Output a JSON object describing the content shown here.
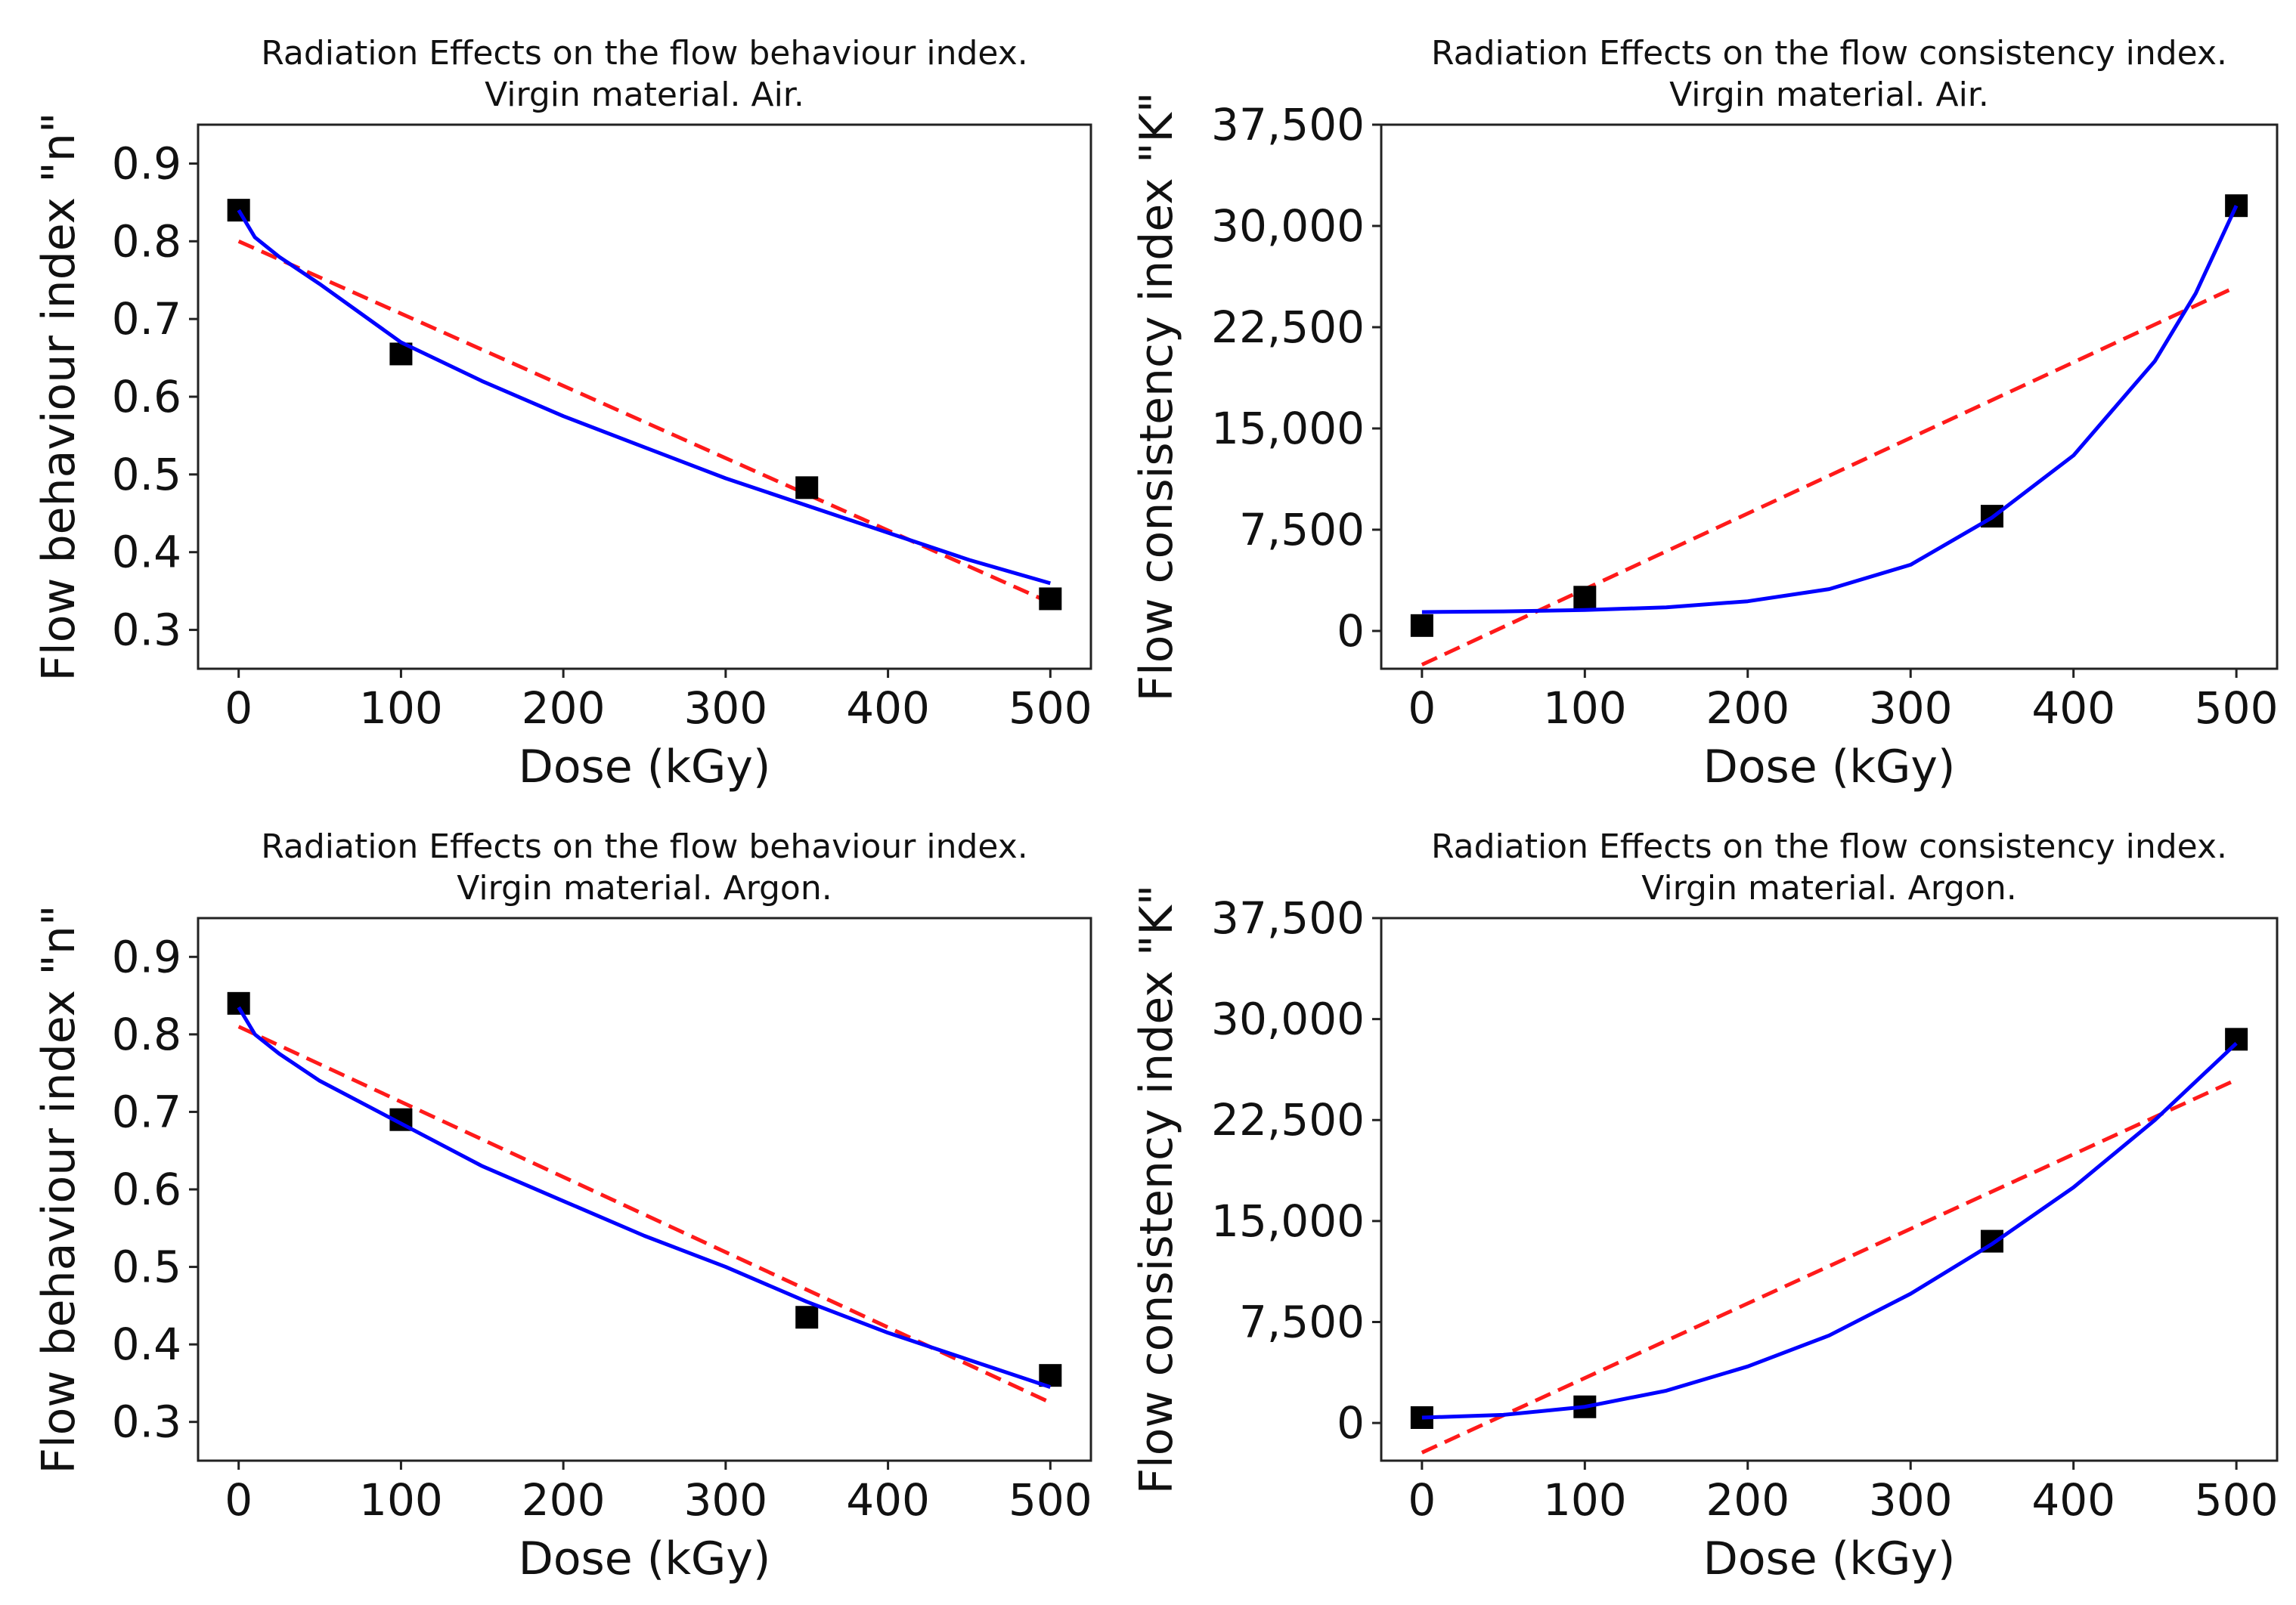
{
  "chart_data": [
    {
      "type": "scatter",
      "title": [
        "Radiation Effects on the flow behaviour index.",
        "Virgin material. Air."
      ],
      "xlabel": "Dose (kGy)",
      "ylabel": "Flow behaviour index \"n\"",
      "xlim": [
        -25,
        525
      ],
      "ylim": [
        0.25,
        0.95
      ],
      "xticks": [
        0,
        100,
        200,
        300,
        400,
        500
      ],
      "xtick_labels": [
        "0",
        "100",
        "200",
        "300",
        "400",
        "500"
      ],
      "yticks": [
        0.3,
        0.4,
        0.5,
        0.6,
        0.7,
        0.8,
        0.9
      ],
      "ytick_labels": [
        "0.3",
        "0.4",
        "0.5",
        "0.6",
        "0.7",
        "0.8",
        "0.9"
      ],
      "points": {
        "x": [
          0,
          100,
          350,
          500
        ],
        "y": [
          0.84,
          0.655,
          0.483,
          0.34
        ],
        "color": "#000000",
        "marker": "square"
      },
      "linear_fit": {
        "x": [
          0,
          500
        ],
        "y": [
          0.8,
          0.335
        ],
        "color": "#ff1a1a",
        "style": "dashed"
      },
      "curve_fit": {
        "x": [
          0,
          10,
          25,
          50,
          100,
          150,
          200,
          250,
          300,
          350,
          400,
          450,
          500
        ],
        "y": [
          0.84,
          0.805,
          0.78,
          0.745,
          0.67,
          0.62,
          0.575,
          0.535,
          0.495,
          0.46,
          0.425,
          0.39,
          0.36
        ],
        "color": "#0000ff",
        "style": "solid"
      }
    },
    {
      "type": "scatter",
      "title": [
        "Radiation Effects on the flow consistency index.",
        "Virgin material. Air."
      ],
      "xlabel": "Dose (kGy)",
      "ylabel": "Flow consistency index \"K\"",
      "xlim": [
        -25,
        525
      ],
      "ylim": [
        -2800,
        37500
      ],
      "xticks": [
        0,
        100,
        200,
        300,
        400,
        500
      ],
      "xtick_labels": [
        "0",
        "100",
        "200",
        "300",
        "400",
        "500"
      ],
      "yticks": [
        0,
        7500,
        15000,
        22500,
        30000,
        37500
      ],
      "ytick_labels": [
        "0",
        "7,500",
        "15,000",
        "22,500",
        "30,000",
        "37,500"
      ],
      "points": {
        "x": [
          0,
          100,
          350,
          500
        ],
        "y": [
          400,
          2500,
          8500,
          31500
        ],
        "color": "#000000",
        "marker": "square"
      },
      "linear_fit": {
        "x": [
          0,
          500
        ],
        "y": [
          -2500,
          25500
        ],
        "color": "#ff1a1a",
        "style": "dashed"
      },
      "curve_fit": {
        "x": [
          0,
          50,
          100,
          150,
          200,
          250,
          300,
          350,
          400,
          450,
          475,
          500
        ],
        "y": [
          1400,
          1450,
          1550,
          1750,
          2200,
          3100,
          4900,
          8400,
          13000,
          20000,
          25000,
          31500
        ],
        "color": "#0000ff",
        "style": "solid"
      }
    },
    {
      "type": "scatter",
      "title": [
        "Radiation Effects on the flow behaviour index.",
        "Virgin material. Argon."
      ],
      "xlabel": "Dose (kGy)",
      "ylabel": "Flow behaviour index \"n\"",
      "xlim": [
        -25,
        525
      ],
      "ylim": [
        0.25,
        0.95
      ],
      "xticks": [
        0,
        100,
        200,
        300,
        400,
        500
      ],
      "xtick_labels": [
        "0",
        "100",
        "200",
        "300",
        "400",
        "500"
      ],
      "yticks": [
        0.3,
        0.4,
        0.5,
        0.6,
        0.7,
        0.8,
        0.9
      ],
      "ytick_labels": [
        "0.3",
        "0.4",
        "0.5",
        "0.6",
        "0.7",
        "0.8",
        "0.9"
      ],
      "points": {
        "x": [
          0,
          100,
          350,
          500
        ],
        "y": [
          0.84,
          0.69,
          0.435,
          0.36
        ],
        "color": "#000000",
        "marker": "square"
      },
      "linear_fit": {
        "x": [
          0,
          500
        ],
        "y": [
          0.81,
          0.325
        ],
        "color": "#ff1a1a",
        "style": "dashed"
      },
      "curve_fit": {
        "x": [
          0,
          10,
          25,
          50,
          100,
          150,
          200,
          250,
          300,
          350,
          400,
          450,
          500
        ],
        "y": [
          0.835,
          0.8,
          0.775,
          0.74,
          0.685,
          0.63,
          0.585,
          0.54,
          0.5,
          0.455,
          0.415,
          0.38,
          0.345
        ],
        "color": "#0000ff",
        "style": "solid"
      }
    },
    {
      "type": "scatter",
      "title": [
        "Radiation Effects on the flow consistency index.",
        "Virgin material. Argon."
      ],
      "xlabel": "Dose (kGy)",
      "ylabel": "Flow consistency index \"K\"",
      "xlim": [
        -25,
        525
      ],
      "ylim": [
        -2800,
        37500
      ],
      "xticks": [
        0,
        100,
        200,
        300,
        400,
        500
      ],
      "xtick_labels": [
        "0",
        "100",
        "200",
        "300",
        "400",
        "500"
      ],
      "yticks": [
        0,
        7500,
        15000,
        22500,
        30000,
        37500
      ],
      "ytick_labels": [
        "0",
        "7,500",
        "15,000",
        "22,500",
        "30,000",
        "37,500"
      ],
      "points": {
        "x": [
          0,
          100,
          350,
          500
        ],
        "y": [
          400,
          1200,
          13500,
          28500
        ],
        "color": "#000000",
        "marker": "square"
      },
      "linear_fit": {
        "x": [
          0,
          500
        ],
        "y": [
          -2200,
          25500
        ],
        "color": "#ff1a1a",
        "style": "dashed"
      },
      "curve_fit": {
        "x": [
          0,
          50,
          100,
          150,
          200,
          250,
          300,
          350,
          400,
          450,
          500
        ],
        "y": [
          400,
          600,
          1200,
          2400,
          4200,
          6500,
          9600,
          13300,
          17500,
          22500,
          28200
        ],
        "color": "#0000ff",
        "style": "solid"
      }
    }
  ]
}
